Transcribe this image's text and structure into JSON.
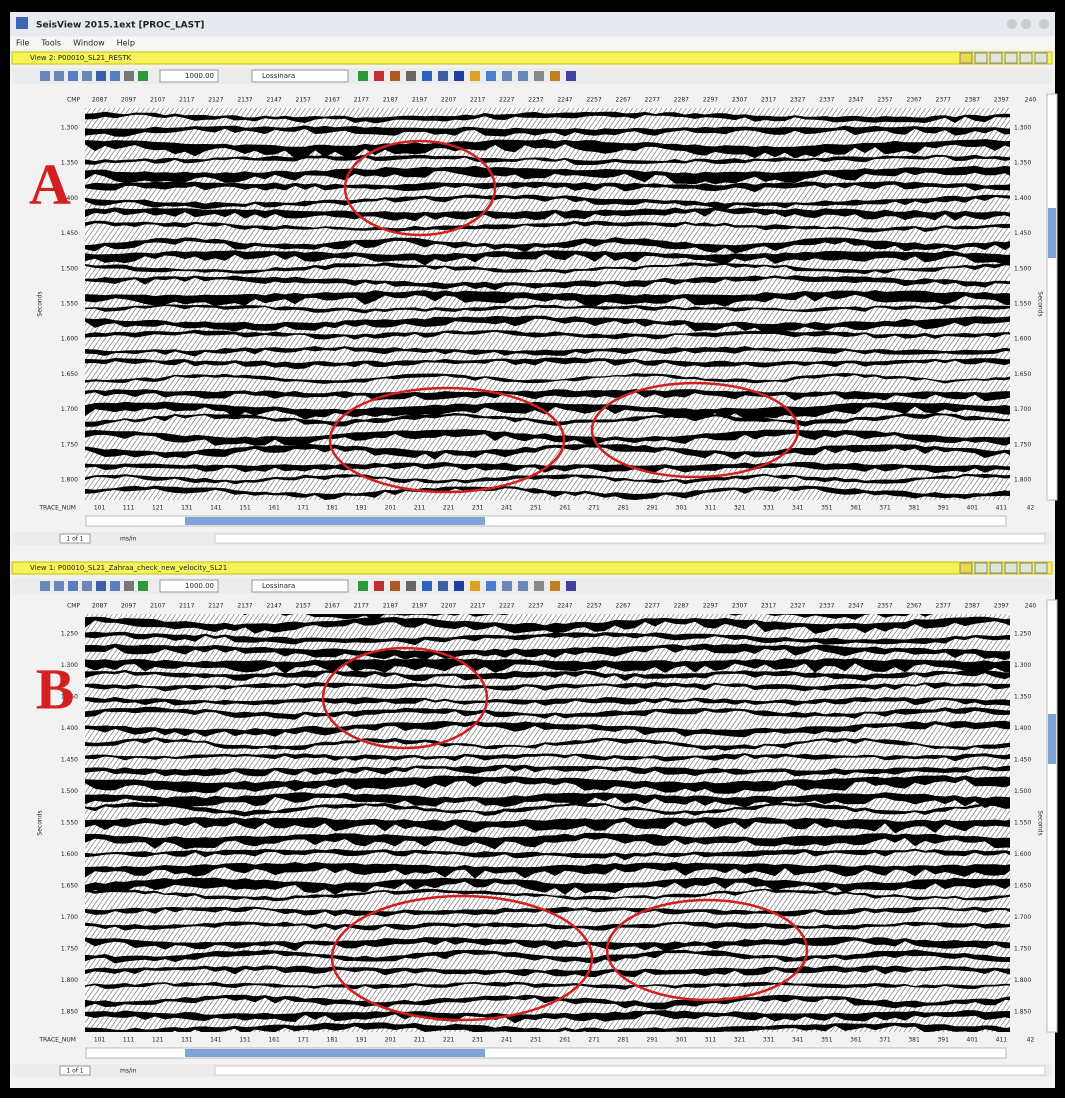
{
  "window": {
    "title": "SeisView 2015.1ext [PROC_LAST]",
    "menu": [
      "File",
      "Tools",
      "Window",
      "Help"
    ]
  },
  "panels": [
    {
      "label": "A",
      "view_title": "View 2: P00010_SL21_RESTK",
      "zoom": "1000.00",
      "color_map": "Lossinara",
      "cmp_label": "CMP",
      "cmp_ticks": [
        "2087",
        "2097",
        "2107",
        "2117",
        "2127",
        "2137",
        "2147",
        "2157",
        "2167",
        "2177",
        "2187",
        "2197",
        "2207",
        "2217",
        "2227",
        "2237",
        "2247",
        "2257",
        "2267",
        "2277",
        "2287",
        "2297",
        "2307",
        "2317",
        "2327",
        "2337",
        "2347",
        "2357",
        "2367",
        "2377",
        "2387",
        "2397",
        "240"
      ],
      "trace_label": "TRACE_NUM",
      "trace_ticks": [
        "101",
        "111",
        "121",
        "131",
        "141",
        "151",
        "161",
        "171",
        "181",
        "191",
        "201",
        "211",
        "221",
        "231",
        "241",
        "251",
        "261",
        "271",
        "281",
        "291",
        "301",
        "311",
        "321",
        "331",
        "341",
        "351",
        "361",
        "371",
        "381",
        "391",
        "401",
        "411",
        "42"
      ],
      "axis_label": "Seconds",
      "time_ticks": [
        "1.300",
        "1.350",
        "1.400",
        "1.450",
        "1.500",
        "1.550",
        "1.600",
        "1.650",
        "1.700",
        "1.750",
        "1.800"
      ],
      "page": "1 of 1",
      "unit": "ms/in"
    },
    {
      "label": "B",
      "view_title": "View 1: P00010_SL21_Zahraa_check_new_velocity_SL21",
      "zoom": "1000.00",
      "color_map": "Lossinara",
      "cmp_label": "CMP",
      "cmp_ticks": [
        "2087",
        "2097",
        "2107",
        "2117",
        "2127",
        "2137",
        "2147",
        "2157",
        "2167",
        "2177",
        "2187",
        "2197",
        "2207",
        "2217",
        "2227",
        "2237",
        "2247",
        "2257",
        "2267",
        "2277",
        "2287",
        "2297",
        "2307",
        "2317",
        "2327",
        "2337",
        "2347",
        "2357",
        "2367",
        "2377",
        "2387",
        "2397",
        "240"
      ],
      "trace_label": "TRACE_NUM",
      "trace_ticks": [
        "101",
        "111",
        "121",
        "131",
        "141",
        "151",
        "161",
        "171",
        "181",
        "191",
        "201",
        "211",
        "221",
        "231",
        "241",
        "251",
        "261",
        "271",
        "281",
        "291",
        "301",
        "311",
        "321",
        "331",
        "341",
        "351",
        "361",
        "371",
        "381",
        "391",
        "401",
        "411",
        "42"
      ],
      "axis_label": "Seconds",
      "time_ticks": [
        "1.250",
        "1.300",
        "1.350",
        "1.400",
        "1.450",
        "1.500",
        "1.550",
        "1.600",
        "1.650",
        "1.700",
        "1.750",
        "1.800",
        "1.850"
      ],
      "page": "1 of 1",
      "unit": "ms/in"
    }
  ]
}
